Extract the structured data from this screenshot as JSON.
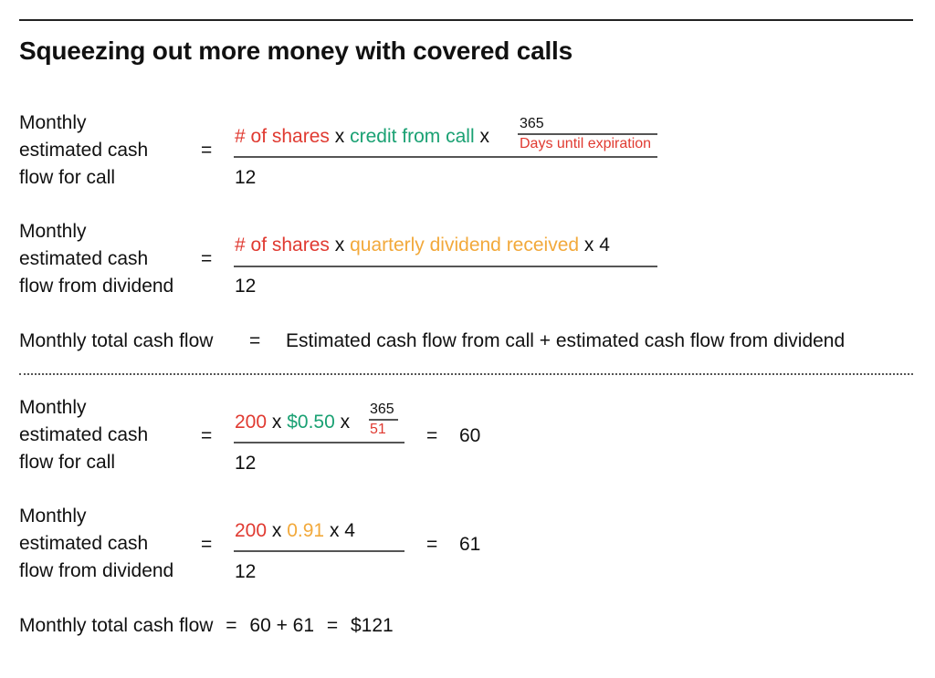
{
  "title": "Squeezing out more money with covered calls",
  "formulas": {
    "call": {
      "label": [
        "Monthly",
        "estimated cash",
        "flow for call"
      ],
      "eq": "=",
      "shares": "# of shares",
      "x1": "x",
      "credit": "credit from call",
      "x2": "x",
      "sub_num": "365",
      "sub_den": "Days until expiration",
      "denominator": "12"
    },
    "dividend": {
      "label": [
        "Monthly",
        "estimated cash",
        "flow from dividend"
      ],
      "eq": "=",
      "shares": "# of shares",
      "x1": "x",
      "dividend": "quarterly dividend received",
      "x4": "x 4",
      "denominator": "12"
    },
    "total": {
      "label": "Monthly total cash flow",
      "eq": "=",
      "expression": "Estimated cash flow from call + estimated cash flow from dividend"
    }
  },
  "example": {
    "call": {
      "label": [
        "Monthly",
        "estimated cash",
        "flow for call"
      ],
      "eq": "=",
      "shares": "200",
      "x1": "x",
      "credit": "$0.50",
      "x2": "x",
      "sub_num": "365",
      "sub_den": "51",
      "denominator": "12",
      "eq2": "=",
      "result": "60"
    },
    "dividend": {
      "label": [
        "Monthly",
        "estimated cash",
        "flow from dividend"
      ],
      "eq": "=",
      "shares": "200",
      "x1": "x",
      "dividend": "0.91",
      "x4": "x 4",
      "denominator": "12",
      "eq2": "=",
      "result": "61"
    },
    "total": {
      "label": "Monthly total cash flow",
      "eq": "=",
      "sum": "60 + 61",
      "eq2": "=",
      "result": "$121"
    }
  },
  "colors": {
    "shares": "#e03a31",
    "credit": "#1aa173",
    "dividend": "#f2a93b",
    "days": "#e03a31"
  }
}
